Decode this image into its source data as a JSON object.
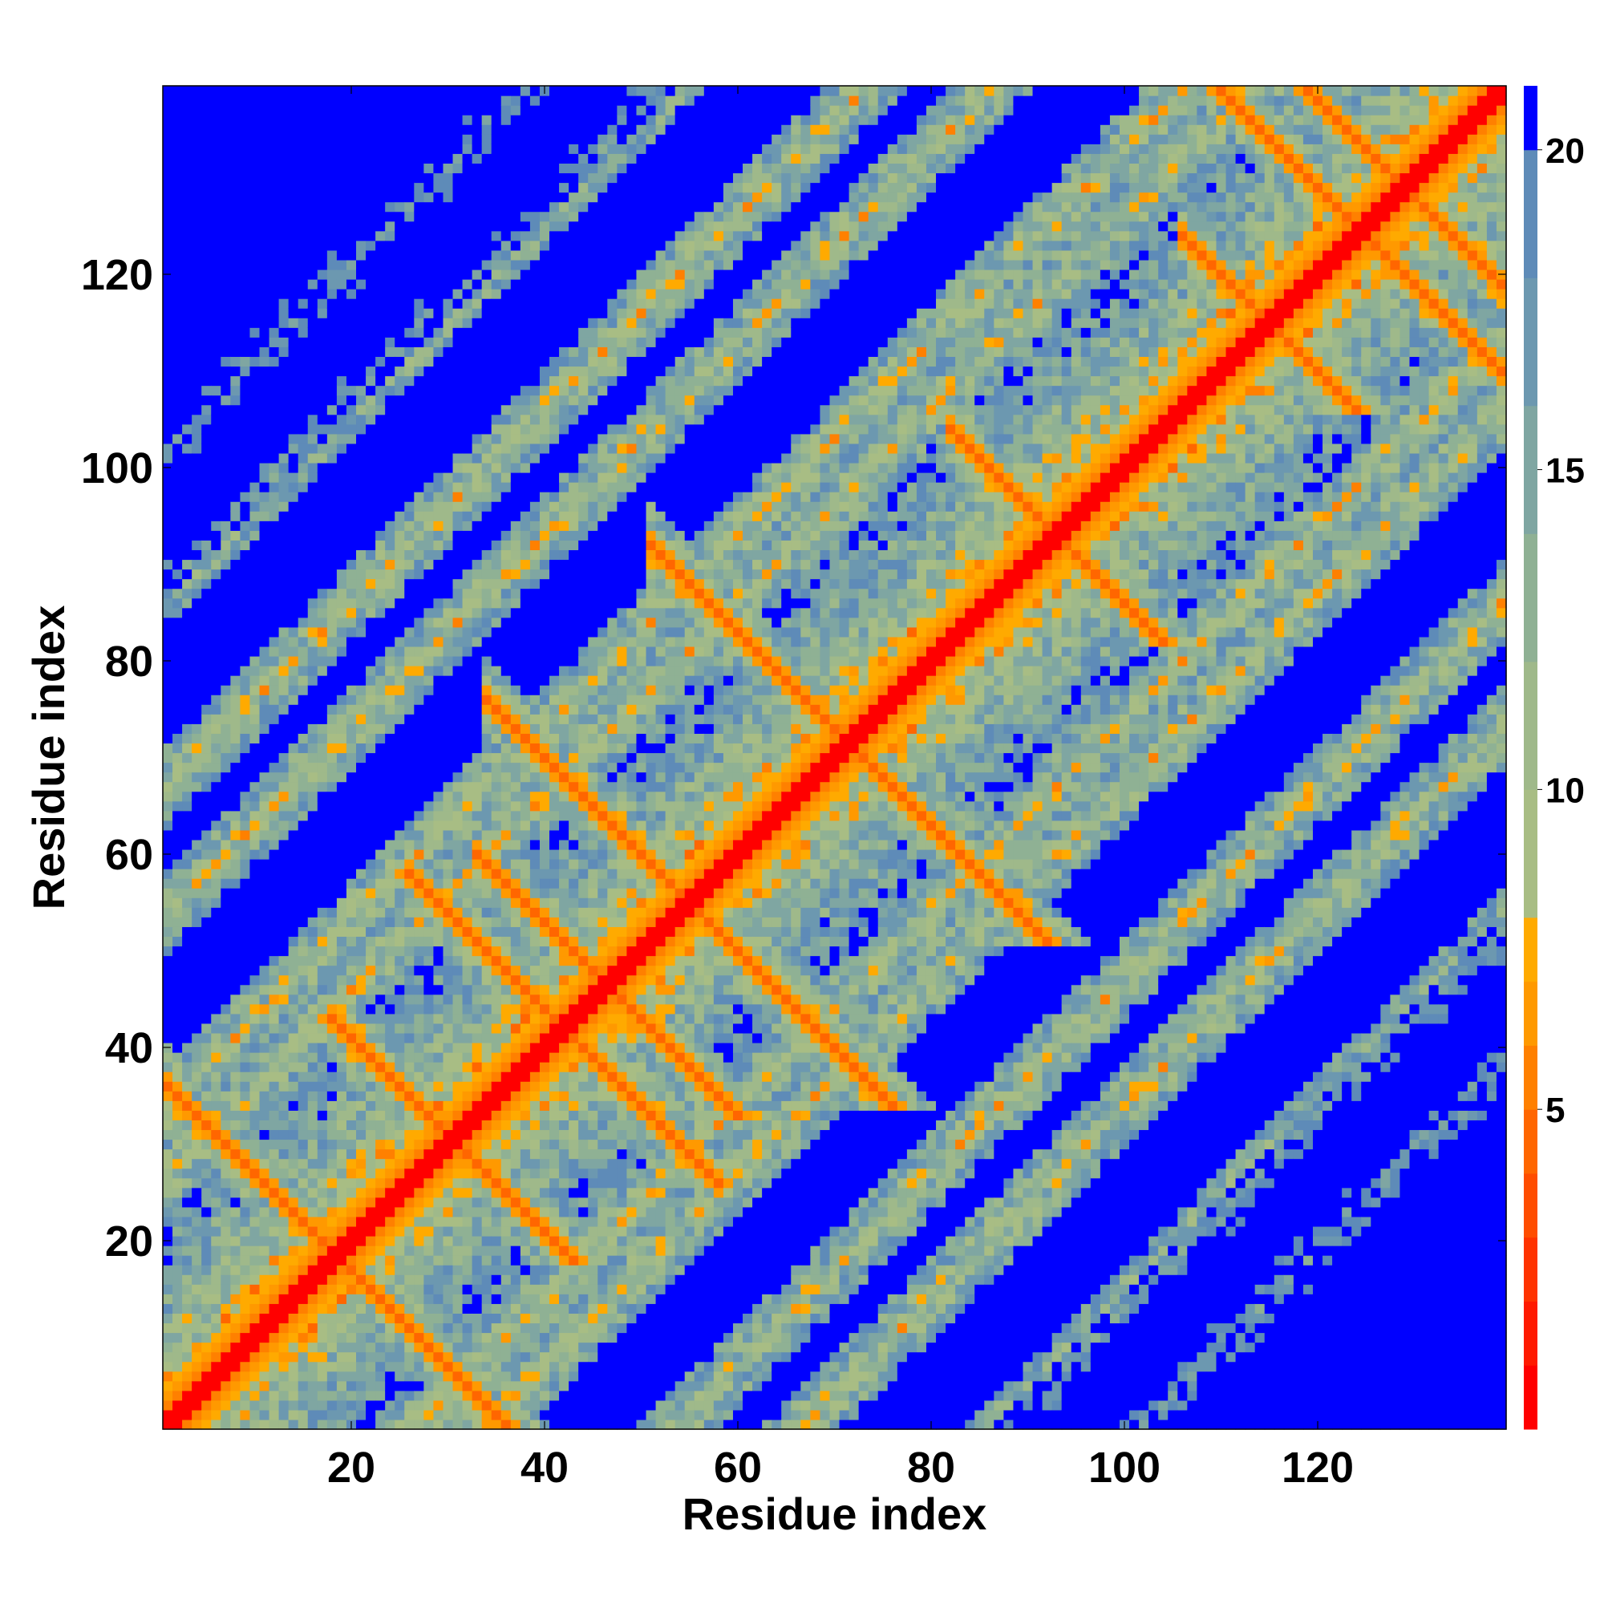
{
  "chart_data": {
    "type": "heatmap",
    "title": "",
    "xlabel": "Residue index",
    "ylabel": "Residue index",
    "n_residues": 139,
    "xlim": [
      1,
      139
    ],
    "ylim": [
      1,
      139
    ],
    "x_ticks": [
      20,
      40,
      60,
      80,
      100,
      120
    ],
    "y_ticks": [
      20,
      40,
      60,
      80,
      100,
      120
    ],
    "colorbar": {
      "ticks": [
        5,
        10,
        15,
        20
      ],
      "range": [
        0,
        21
      ],
      "levels": [
        {
          "max": 1,
          "color": "#ff0000"
        },
        {
          "max": 2,
          "color": "#ff1a00"
        },
        {
          "max": 3,
          "color": "#ff3300"
        },
        {
          "max": 4,
          "color": "#ff4d00"
        },
        {
          "max": 5,
          "color": "#ff6600"
        },
        {
          "max": 6,
          "color": "#ff8000"
        },
        {
          "max": 7,
          "color": "#ff9900"
        },
        {
          "max": 8,
          "color": "#ffaa00"
        },
        {
          "max": 10,
          "color": "#a8bd84"
        },
        {
          "max": 12,
          "color": "#9fb98a"
        },
        {
          "max": 14,
          "color": "#8fb194"
        },
        {
          "max": 16,
          "color": "#7fa6a2"
        },
        {
          "max": 18,
          "color": "#6c98b0"
        },
        {
          "max": 20,
          "color": "#5e8bb8"
        },
        {
          "max": 21,
          "color": "#0000ff"
        }
      ]
    },
    "cutoff": 20,
    "structure": {
      "main_diagonal": [
        [
          1,
          139
        ]
      ],
      "beta_hairpins": [
        [
          2,
          35
        ],
        [
          32,
          52
        ],
        [
          37,
          24
        ],
        [
          54,
          39
        ],
        [
          40,
          70
        ],
        [
          57,
          86
        ],
        [
          88,
          98
        ],
        [
          112,
          118
        ],
        [
          110,
          139
        ],
        [
          122,
          136
        ]
      ],
      "note": "distance matrix, red = close contact, blue = beyond cutoff"
    }
  }
}
